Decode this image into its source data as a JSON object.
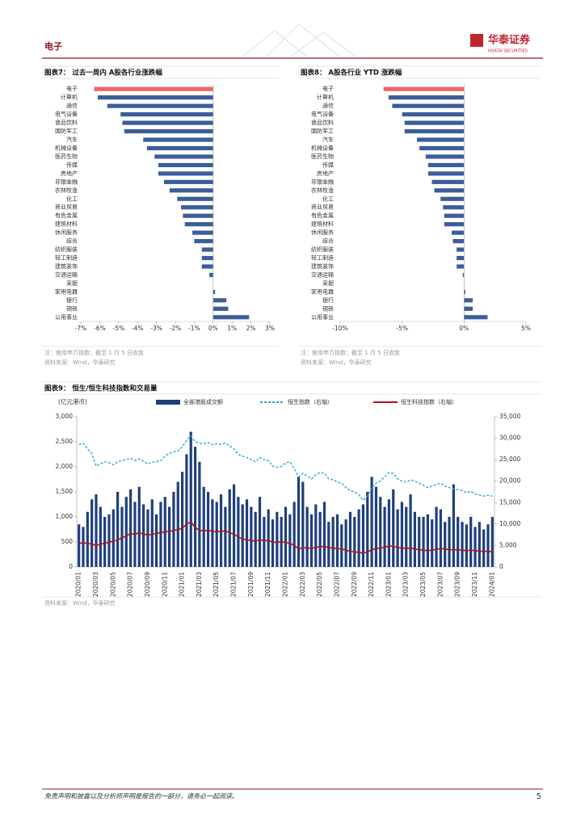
{
  "header": {
    "section": "电子",
    "logo": "华泰证券",
    "logo_en": "HUATAI SECURITIES"
  },
  "footer": {
    "disclaimer": "免责声明和披露以及分析师声明是报告的一部分，请务必一起阅读。",
    "page": "5"
  },
  "chart_data": [
    {
      "type": "hbar",
      "title": "图表7： 过去一周内 A股各行业涨跌幅",
      "note": "注：使用申万指数；截至 1 月 5 日收盘",
      "source": "资料来源：Wind，华泰研究",
      "categories": [
        "电子",
        "计算机",
        "通信",
        "电气设备",
        "食品饮料",
        "国防军工",
        "汽车",
        "机械设备",
        "医药生物",
        "传媒",
        "房地产",
        "非银金融",
        "农林牧渔",
        "化工",
        "商业贸易",
        "有色金属",
        "建筑材料",
        "休闲服务",
        "综合",
        "纺织服装",
        "轻工制造",
        "建筑装饰",
        "交通运输",
        "采掘",
        "家用电器",
        "银行",
        "钢铁",
        "公用事业"
      ],
      "values": [
        -6.3,
        -6.1,
        -5.6,
        -4.9,
        -4.8,
        -4.7,
        -3.7,
        -3.5,
        -3.1,
        -2.9,
        -2.9,
        -2.6,
        -2.3,
        -1.9,
        -1.7,
        -1.6,
        -1.5,
        -1.1,
        -1.0,
        -0.6,
        -0.6,
        -0.6,
        -0.2,
        0,
        0.1,
        0.7,
        0.8,
        1.9
      ],
      "colors": [
        "#f2646c",
        "#3b5d99",
        "#3b5d99",
        "#3b5d99",
        "#3b5d99",
        "#3b5d99",
        "#3b5d99",
        "#3b5d99",
        "#3b5d99",
        "#3b5d99",
        "#3b5d99",
        "#3b5d99",
        "#3b5d99",
        "#3b5d99",
        "#3b5d99",
        "#3b5d99",
        "#3b5d99",
        "#3b5d99",
        "#3b5d99",
        "#3b5d99",
        "#3b5d99",
        "#3b5d99",
        "#3b5d99",
        "#3b5d99",
        "#3b5d99",
        "#3b5d99",
        "#3b5d99",
        "#3b5d99"
      ],
      "xlim": [
        -7,
        3
      ],
      "xticks": [
        {
          "value": -7,
          "label": "-7%"
        },
        {
          "value": -6,
          "label": "-6%"
        },
        {
          "value": -5,
          "label": "-5%"
        },
        {
          "value": -4,
          "label": "-4%"
        },
        {
          "value": -3,
          "label": "-3%"
        },
        {
          "value": -2,
          "label": "-2%"
        },
        {
          "value": -1,
          "label": "-1%"
        },
        {
          "value": 0,
          "label": "0%"
        },
        {
          "value": 1,
          "label": "1%"
        },
        {
          "value": 2,
          "label": "2%"
        },
        {
          "value": 3,
          "label": "3%"
        }
      ]
    },
    {
      "type": "hbar",
      "title": "图表8： A股各行业 YTD 涨跌幅",
      "note": "注：使用申万指数；截至 1 月 5 日收盘",
      "source": "资料来源：Wind，华泰研究",
      "categories": [
        "电子",
        "计算机",
        "通信",
        "电气设备",
        "食品饮料",
        "国防军工",
        "汽车",
        "机械设备",
        "医药生物",
        "传媒",
        "房地产",
        "非银金融",
        "农林牧渔",
        "化工",
        "商业贸易",
        "有色金属",
        "建筑材料",
        "休闲服务",
        "综合",
        "纺织服装",
        "轻工制造",
        "建筑装饰",
        "交通运输",
        "采掘",
        "家用电器",
        "银行",
        "钢铁",
        "公用事业"
      ],
      "values": [
        -6.5,
        -6.1,
        -5.8,
        -5.0,
        -4.8,
        -4.8,
        -3.8,
        -3.6,
        -3.1,
        -2.9,
        -2.9,
        -2.6,
        -2.4,
        -1.9,
        -1.7,
        -1.6,
        -1.6,
        -1.0,
        -0.9,
        -0.6,
        -0.6,
        -0.6,
        -0.1,
        0,
        0.1,
        0.7,
        0.7,
        1.9
      ],
      "colors": [
        "#f2646c",
        "#3b5d99",
        "#3b5d99",
        "#3b5d99",
        "#3b5d99",
        "#3b5d99",
        "#3b5d99",
        "#3b5d99",
        "#3b5d99",
        "#3b5d99",
        "#3b5d99",
        "#3b5d99",
        "#3b5d99",
        "#3b5d99",
        "#3b5d99",
        "#3b5d99",
        "#3b5d99",
        "#3b5d99",
        "#3b5d99",
        "#3b5d99",
        "#3b5d99",
        "#3b5d99",
        "#3b5d99",
        "#3b5d99",
        "#3b5d99",
        "#3b5d99",
        "#3b5d99",
        "#3b5d99"
      ],
      "xlim": [
        -10,
        5
      ],
      "xticks": [
        {
          "value": -10,
          "label": "-10%"
        },
        {
          "value": -5,
          "label": "-5%"
        },
        {
          "value": 0,
          "label": "0%"
        },
        {
          "value": 5,
          "label": "5%"
        }
      ]
    },
    {
      "type": "combo",
      "title": "图表9： 恒生/恒生科技指数和交易量",
      "y_label": "(亿元港币)",
      "source": "资料来源：Wind，华泰研究",
      "categories": [
        "2020/01",
        null,
        null,
        null,
        "2020/03",
        null,
        null,
        null,
        "2020/05",
        null,
        null,
        null,
        "2020/07",
        null,
        null,
        null,
        "2020/09",
        null,
        null,
        null,
        "2020/11",
        null,
        null,
        null,
        "2021/01",
        null,
        null,
        null,
        "2021/03",
        null,
        null,
        null,
        "2021/05",
        null,
        null,
        null,
        "2021/07",
        null,
        null,
        null,
        "2021/09",
        null,
        null,
        null,
        "2021/11",
        null,
        null,
        null,
        "2022/01",
        null,
        null,
        null,
        "2022/03",
        null,
        null,
        null,
        "2022/05",
        null,
        null,
        null,
        "2022/07",
        null,
        null,
        null,
        "2022/09",
        null,
        null,
        null,
        "2022/11",
        null,
        null,
        null,
        "2023/01",
        null,
        null,
        null,
        "2023/03",
        null,
        null,
        null,
        "2023/05",
        null,
        null,
        null,
        "2023/07",
        null,
        null,
        null,
        "2023/09",
        null,
        null,
        null,
        "2023/11",
        null,
        null,
        null,
        "2024/01"
      ],
      "ylim": [
        0,
        3000
      ],
      "yticks": [
        0,
        500,
        {
          "value": 1000,
          "label": "1,000"
        },
        {
          "value": 1500,
          "label": "1,500"
        },
        {
          "value": 2000,
          "label": "2,000"
        },
        {
          "value": 2500,
          "label": "2,500"
        },
        {
          "value": 3000,
          "label": "3,000"
        }
      ],
      "y2lim": [
        0,
        35000
      ],
      "y2ticks": [
        0,
        {
          "value": 5000,
          "label": "5,000"
        },
        {
          "value": 10000,
          "label": "10,000"
        },
        {
          "value": 15000,
          "label": "15,000"
        },
        {
          "value": 20000,
          "label": "20,000"
        },
        {
          "value": 25000,
          "label": "25,000"
        },
        {
          "value": 30000,
          "label": "30,000"
        },
        {
          "value": 35000,
          "label": "35,000"
        }
      ],
      "series": [
        {
          "name": "全部港股成交额",
          "type": "bar",
          "color": "#1f3f7a",
          "values": [
            850,
            800,
            1100,
            1350,
            1450,
            1200,
            1000,
            1050,
            1150,
            1500,
            1200,
            1400,
            1550,
            1300,
            1600,
            1250,
            1150,
            1350,
            1050,
            1300,
            1400,
            1200,
            1500,
            1700,
            1900,
            2250,
            2700,
            2400,
            2100,
            1600,
            1500,
            1350,
            1300,
            1450,
            1200,
            1550,
            1650,
            1400,
            1250,
            1350,
            1200,
            1100,
            1400,
            1000,
            1150,
            950,
            1100,
            1000,
            1200,
            1050,
            1300,
            1800,
            1700,
            1200,
            1050,
            1250,
            1100,
            1300,
            900,
            1000,
            1050,
            850,
            950,
            1100,
            1000,
            1150,
            1250,
            1500,
            1800,
            1600,
            1400,
            1200,
            1350,
            1550,
            1150,
            1300,
            1200,
            1450,
            1100,
            1000,
            1000,
            1050,
            950,
            1200,
            1150,
            900,
            1000,
            1650,
            1000,
            900,
            850,
            1000,
            800,
            900,
            750,
            850,
            1000
          ]
        },
        {
          "name": "恒生指数（右轴）",
          "type": "line",
          "dashed": true,
          "axis": "y2",
          "color": "#2aa7df",
          "values": [
            28500,
            28800,
            27500,
            26500,
            23500,
            24000,
            24500,
            24300,
            23800,
            24500,
            24800,
            25000,
            25300,
            24800,
            25200,
            24600,
            24000,
            24400,
            24600,
            24800,
            25800,
            26500,
            26800,
            27000,
            28000,
            29500,
            30500,
            29200,
            28800,
            28700,
            29000,
            28500,
            28700,
            28600,
            28900,
            28200,
            27500,
            26200,
            25800,
            25500,
            25000,
            24500,
            25500,
            25000,
            24800,
            23500,
            23200,
            23400,
            24200,
            24500,
            23000,
            21000,
            21800,
            21200,
            20500,
            21500,
            22000,
            21800,
            20500,
            20300,
            19800,
            19500,
            18500,
            17800,
            17500,
            16800,
            15500,
            16500,
            18500,
            19500,
            20000,
            21000,
            22000,
            21800,
            20500,
            20000,
            19800,
            20300,
            20000,
            19500,
            19000,
            18500,
            18800,
            19200,
            19500,
            18800,
            18500,
            18200,
            18000,
            17800,
            17300,
            17600,
            17000,
            16800,
            16500,
            16700,
            16500
          ]
        },
        {
          "name": "恒生科技指数（右轴）",
          "type": "line",
          "dashed": false,
          "axis": "y2",
          "color": "#b0121b",
          "values": [
            5500,
            5600,
            5500,
            5300,
            5000,
            5300,
            5500,
            5800,
            6000,
            6300,
            6800,
            7200,
            7800,
            7600,
            8000,
            7700,
            7400,
            7600,
            7800,
            8000,
            8200,
            8300,
            8500,
            8700,
            9000,
            10000,
            10500,
            9200,
            8500,
            8400,
            8500,
            8300,
            8200,
            8300,
            8400,
            8000,
            7600,
            7000,
            6500,
            6300,
            6200,
            6000,
            6300,
            6200,
            6100,
            5800,
            5700,
            5900,
            5700,
            5500,
            5000,
            4200,
            4500,
            4400,
            4300,
            4600,
            4700,
            4800,
            4500,
            4400,
            4300,
            4200,
            3900,
            3600,
            3500,
            3400,
            3200,
            3500,
            4000,
            4300,
            4400,
            4600,
            4900,
            4800,
            4500,
            4400,
            4300,
            4400,
            4200,
            4000,
            3900,
            3800,
            3900,
            4100,
            4300,
            4200,
            4000,
            4000,
            4000,
            3900,
            3800,
            3900,
            3800,
            3700,
            3600,
            3700,
            3500
          ]
        }
      ]
    }
  ]
}
